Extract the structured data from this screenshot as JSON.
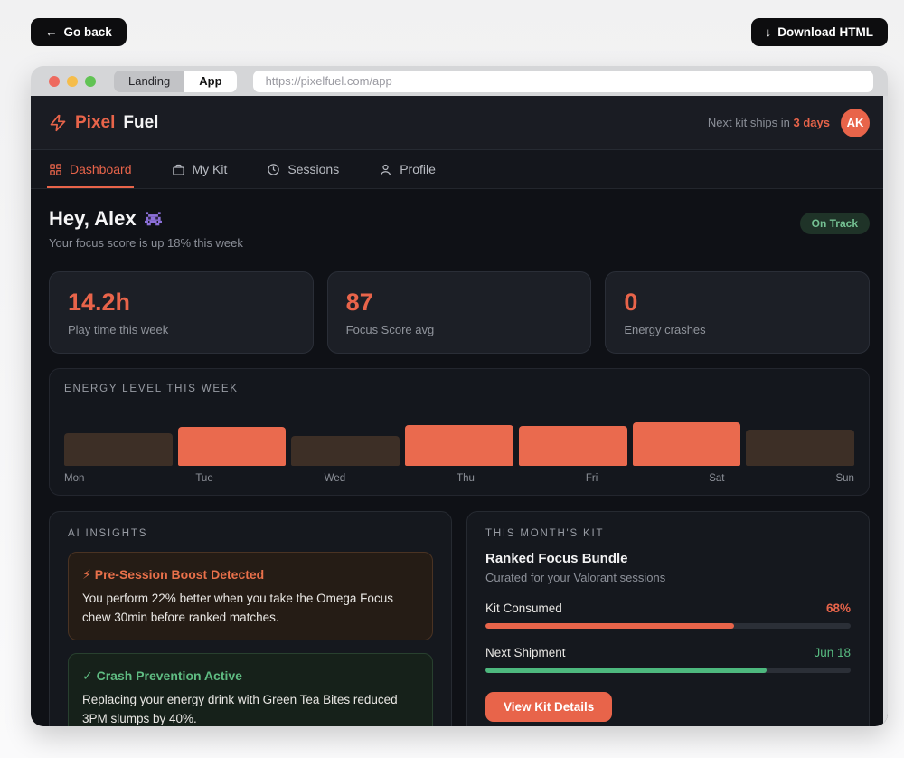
{
  "toolbar": {
    "back_icon": "←",
    "back_label": "Go back",
    "download_icon": "↓",
    "download_label": "Download HTML"
  },
  "browser": {
    "tabs": [
      {
        "label": "Landing",
        "active": false
      },
      {
        "label": "App",
        "active": true
      }
    ],
    "url": "https://pixelfuel.com/app"
  },
  "header": {
    "brand_first": "Pixel",
    "brand_second": "Fuel",
    "ship_prefix": "Next kit ships in ",
    "ship_highlight": "3 days",
    "avatar_initials": "AK"
  },
  "nav": {
    "items": [
      {
        "label": "Dashboard",
        "icon": "grid-icon",
        "active": true
      },
      {
        "label": "My Kit",
        "icon": "box-icon",
        "active": false
      },
      {
        "label": "Sessions",
        "icon": "clock-icon",
        "active": false
      },
      {
        "label": "Profile",
        "icon": "person-icon",
        "active": false
      }
    ]
  },
  "hero": {
    "greeting": "Hey, Alex",
    "emoji": "👾",
    "subtitle": "Your focus score is up 18% this week",
    "badge": "On Track"
  },
  "stats": [
    {
      "value": "14.2h",
      "label": "Play time this week"
    },
    {
      "value": "87",
      "label": "Focus Score avg"
    },
    {
      "value": "0",
      "label": "Energy crashes"
    }
  ],
  "chart_data": {
    "type": "bar",
    "title": "ENERGY LEVEL THIS WEEK",
    "categories": [
      "Mon",
      "Tue",
      "Wed",
      "Thu",
      "Fri",
      "Sat",
      "Sun"
    ],
    "values": [
      55,
      66,
      51,
      69,
      68,
      74,
      61
    ],
    "highlighted": [
      false,
      true,
      false,
      true,
      true,
      true,
      false
    ],
    "ylim": [
      0,
      100
    ],
    "xlabel": "",
    "ylabel": "",
    "bar_color_highlight": "#ea6a4e",
    "bar_color_dim": "#3d2f26",
    "legend": null,
    "grid": false
  },
  "insights": {
    "title": "AI INSIGHTS",
    "items": [
      {
        "icon": "⚡",
        "title": "Pre-Session Boost Detected",
        "body": "You perform 22% better when you take the Omega Focus chew 30min before ranked matches.",
        "tone": "orange"
      },
      {
        "icon": "✓",
        "title": "Crash Prevention Active",
        "body": "Replacing your energy drink with Green Tea Bites reduced 3PM slumps by 40%.",
        "tone": "green"
      }
    ]
  },
  "kit": {
    "title": "THIS MONTH'S KIT",
    "name": "Ranked Focus Bundle",
    "desc": "Curated for your Valorant sessions",
    "rows": [
      {
        "label": "Kit Consumed",
        "value": "68%",
        "pct": 68,
        "color": "orange"
      },
      {
        "label": "Next Shipment",
        "value": "Jun 18",
        "pct": 77,
        "color": "green"
      }
    ],
    "cta": "View Kit Details"
  },
  "colors": {
    "accent": "#e8644a",
    "green": "#57ba80",
    "badge_bg": "#1f3328",
    "window_bg": "#0f1116",
    "card_bg": "#1c1f26",
    "traffic_red": "#ee6a5f",
    "traffic_yellow": "#f5bd4b",
    "traffic_green": "#61c354"
  }
}
